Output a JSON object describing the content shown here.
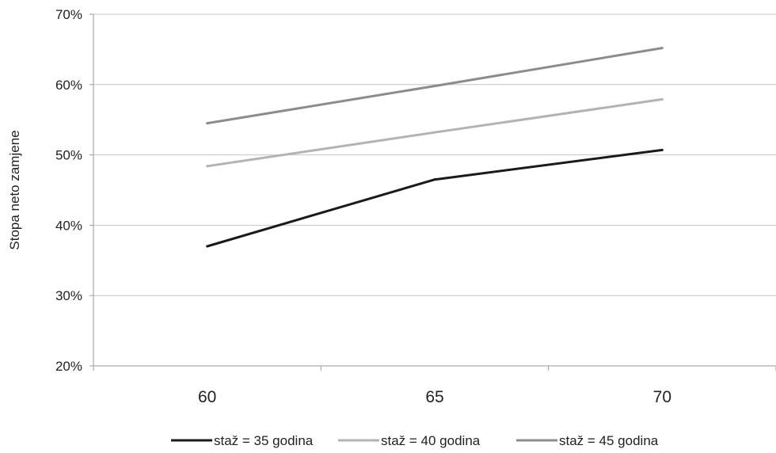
{
  "chart_data": {
    "type": "line",
    "title": "",
    "xlabel": "",
    "ylabel": "Stopa neto zamjene",
    "categories": [
      "60",
      "65",
      "70"
    ],
    "ylim": [
      20,
      70
    ],
    "yticks": [
      "20%",
      "30%",
      "40%",
      "50%",
      "60%",
      "70%"
    ],
    "grid": true,
    "legend_position": "bottom",
    "series": [
      {
        "name": "staž = 35 godina",
        "color": "#1a1a1a",
        "values": [
          37.0,
          46.5,
          50.7
        ]
      },
      {
        "name": "staž = 40 godina",
        "color": "#b3b3b3",
        "values": [
          48.4,
          53.2,
          57.9
        ]
      },
      {
        "name": "staž = 45 godina",
        "color": "#8c8c8c",
        "values": [
          54.5,
          59.8,
          65.2
        ]
      }
    ]
  }
}
